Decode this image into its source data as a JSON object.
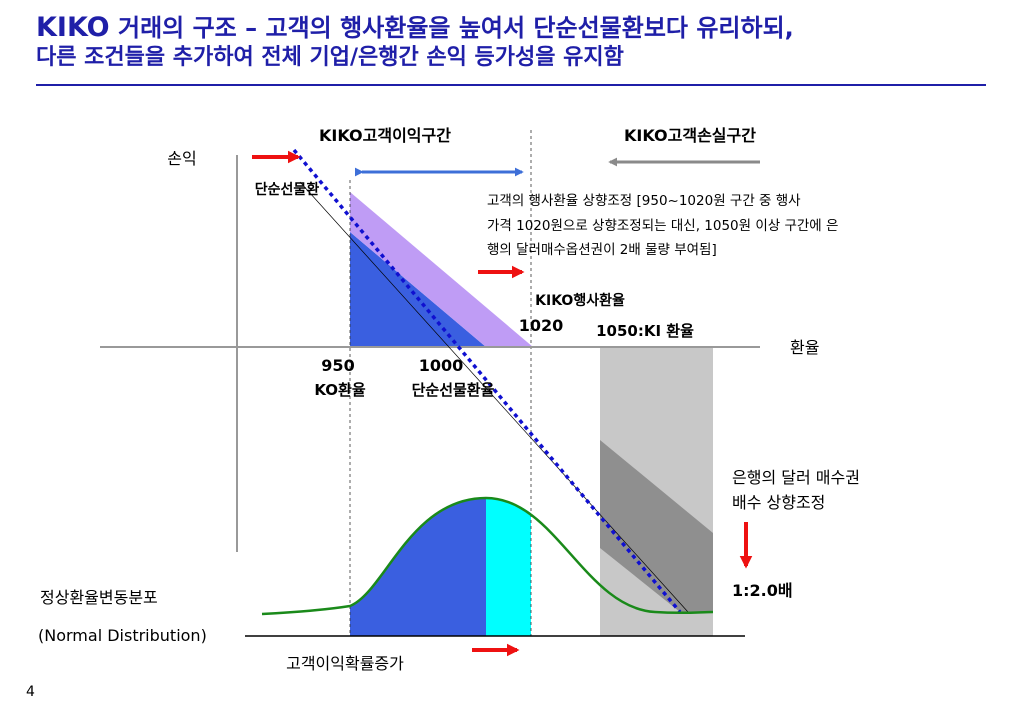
{
  "title": {
    "line1_brand": "KIKO",
    "line1_prefix": "거래의 구조 –",
    "line1_rest": "고객의 행사환율을 높여서 단순선물환보다 유리하되,",
    "line2": "다른 조건들을 추가하여 전체 기업/은행간 손익 등가성을 유지함"
  },
  "axes": {
    "y_label": "손익",
    "x_label": "환율"
  },
  "zones": {
    "gain_label": "KIKO고객이익구간",
    "loss_label": "KIKO고객손실구간"
  },
  "labels": {
    "forward": "단순선물환",
    "strike_adjust_line1": "고객의 행사환율 상향조정 [950~1020원 구간 중 행사",
    "strike_adjust_line2": "가격 1020원으로 상향조정되는 대신, 1050원 이상 구간에 은",
    "strike_adjust_line3": "행의 달러매수옵션권이 2배 물량 부여됨]",
    "kiko_strike_label": "KIKO행사환율",
    "kiko_strike_value": "1020",
    "ki_rate": "1050:KI 환율",
    "ko_value": "950",
    "ko_label": "KO환율",
    "fwd_value": "1000",
    "fwd_label": "단순선물환율",
    "bank_call_line1": "은행의 달러 매수권",
    "bank_call_line2": "배수 상향조정",
    "ratio": "1:2.0배",
    "dist_ko": "정상환율변동분포",
    "dist_en": "(Normal Distribution)",
    "prob_up": "고객이익확률증가"
  },
  "colors": {
    "title": "#1f1fa8",
    "blue_area": "#3a5fe0",
    "violet_area": "#bf9cf5",
    "cyan_area": "#00ffff",
    "gray_area": "#c8c8c8",
    "dark_gray": "#8f8f8f",
    "green_curve": "#1a8a1a",
    "arrow_red": "#ee1111",
    "arrow_blue": "#3d6fd8",
    "arrow_gray": "#8a8a8a",
    "dotted_blue": "#1010d0"
  },
  "page_number": "4"
}
